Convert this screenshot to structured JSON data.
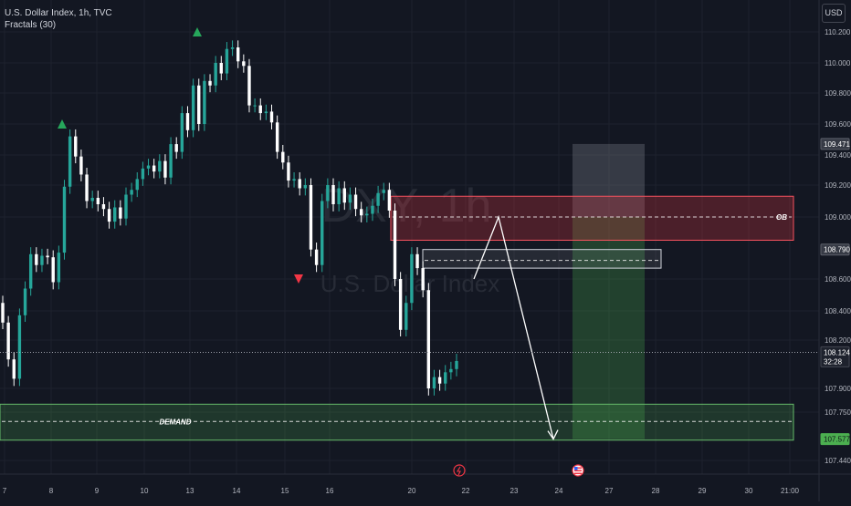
{
  "header": {
    "symbol_line": "U.S. Dollar Index, 1h, TVC",
    "indicator_line": "Fractals (30)"
  },
  "currency_button": "USD",
  "watermark": {
    "ticker": "DXY, 1h",
    "name": "U.S. Dollar Index"
  },
  "colors": {
    "background": "#131722",
    "grid": "#1e222d",
    "candle_up": "#26a69a",
    "candle_down": "#ffffff",
    "fractal_up": "#26a65b",
    "fractal_down": "#f23645",
    "ob_zone": "#f23645",
    "demand_zone": "#4caf50",
    "target_zone": "#4caf50",
    "projection": "#ffffff"
  },
  "chart_data": {
    "type": "candlestick",
    "x_tick_labels": [
      "7",
      "8",
      "9",
      "10",
      "13",
      "14",
      "15",
      "16",
      "20",
      "22",
      "23",
      "24",
      "27",
      "28",
      "29",
      "30",
      "21:00"
    ],
    "y_tick_labels": [
      "107.440",
      "107.750",
      "107.900",
      "108.200",
      "108.400",
      "108.600",
      "109.000",
      "109.200",
      "109.400",
      "109.600",
      "109.800",
      "110.000",
      "110.200"
    ],
    "y_axis_markers": [
      {
        "label": "109.471",
        "value": 109.471,
        "style": "gray"
      },
      {
        "label": "108.790",
        "value": 108.79,
        "style": "gray"
      },
      {
        "label": "108.124",
        "sublabel": "32:28",
        "value": 108.124,
        "style": "dark"
      },
      {
        "label": "107.577",
        "value": 107.577,
        "style": "green"
      }
    ],
    "current_price": 108.124,
    "fractals": [
      {
        "type": "up",
        "price": 110.2,
        "x": "13"
      },
      {
        "type": "up",
        "price": 109.6,
        "x": "8"
      },
      {
        "type": "down",
        "price": 108.6,
        "x": "15"
      }
    ],
    "zones": [
      {
        "label": "OB",
        "top": 109.13,
        "bottom": 108.85,
        "mid": 109.0
      },
      {
        "label": "",
        "top": 108.79,
        "bottom": 108.67,
        "mid": 108.72
      },
      {
        "label": "DEMAND",
        "top": 107.8,
        "bottom": 107.57,
        "mid": 107.69
      }
    ],
    "target_zone": {
      "top": 109.471,
      "bottom": 107.577
    },
    "projection_path": [
      108.6,
      109.0,
      107.577
    ],
    "closes": [
      108.32,
      108.08,
      107.96,
      108.37,
      108.54,
      108.76,
      108.69,
      108.75,
      108.74,
      108.58,
      108.77,
      109.19,
      109.52,
      109.39,
      109.27,
      109.1,
      109.12,
      109.08,
      109.05,
      108.97,
      109.06,
      108.99,
      109.14,
      109.17,
      109.24,
      109.31,
      109.33,
      109.29,
      109.36,
      109.25,
      109.47,
      109.42,
      109.67,
      109.56,
      109.85,
      109.6,
      109.88,
      109.85,
      110.0,
      109.93,
      110.09,
      110.1,
      110.01,
      109.98,
      109.72,
      109.72,
      109.67,
      109.68,
      109.61,
      109.42,
      109.35,
      109.23,
      109.24,
      109.18,
      109.2,
      108.79,
      108.69,
      109.1,
      109.2,
      109.08,
      109.18,
      109.09,
      109.14,
      109.05,
      109.01,
      109.02,
      109.07,
      109.15,
      109.17,
      109.04,
      108.6,
      108.27,
      108.45,
      108.76,
      108.67,
      108.53,
      107.9,
      107.97,
      107.93,
      108.0,
      108.02,
      108.07
    ]
  }
}
